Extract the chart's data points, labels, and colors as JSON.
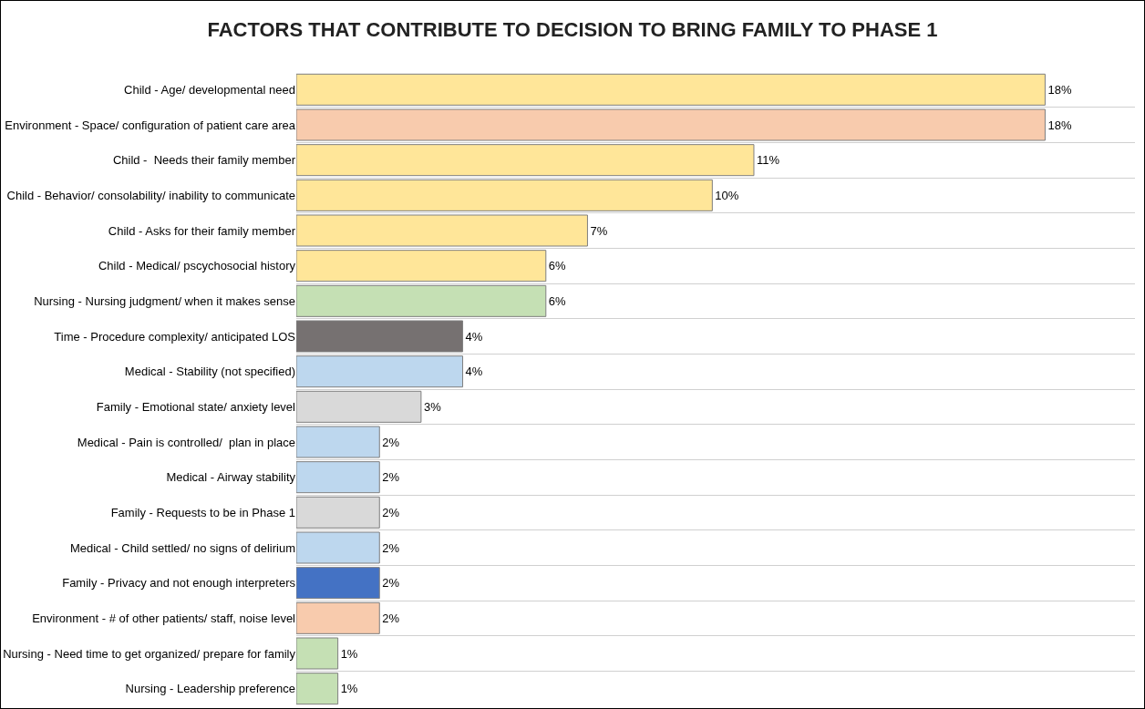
{
  "chart_data": {
    "type": "bar",
    "orientation": "horizontal",
    "title": "FACTORS THAT CONTRIBUTE TO DECISION TO BRING FAMILY TO PHASE 1",
    "categories": [
      "Child - Age/ developmental need",
      "Environment - Space/ configuration of patient care area",
      "Child -  Needs their family member",
      "Child - Behavior/ consolability/ inability to communicate",
      "Child - Asks for their family member",
      "Child - Medical/ pscychosocial history",
      "Nursing - Nursing judgment/ when it makes sense",
      "Time - Procedure complexity/ anticipated LOS",
      "Medical - Stability (not specified)",
      "Family - Emotional state/ anxiety level",
      "Medical - Pain is controlled/  plan in place",
      "Medical - Airway stability",
      "Family - Requests to be in Phase 1",
      "Medical - Child settled/ no signs of delirium",
      "Family - Privacy and not enough interpreters",
      "Environment - # of other patients/ staff, noise level",
      "Nursing - Need time to get organized/ prepare for family",
      "Nursing - Leadership preference"
    ],
    "values": [
      18,
      18,
      11,
      10,
      7,
      6,
      6,
      4,
      4,
      3,
      2,
      2,
      2,
      2,
      2,
      2,
      1,
      1
    ],
    "value_labels": [
      "18%",
      "18%",
      "11%",
      "10%",
      "7%",
      "6%",
      "6%",
      "4%",
      "4%",
      "3%",
      "2%",
      "2%",
      "2%",
      "2%",
      "2%",
      "2%",
      "1%",
      "1%"
    ],
    "colors": [
      "#ffe699",
      "#f8cbad",
      "#ffe699",
      "#ffe699",
      "#ffe699",
      "#ffe699",
      "#c5e0b4",
      "#767171",
      "#bdd7ee",
      "#d9d9d9",
      "#bdd7ee",
      "#bdd7ee",
      "#d9d9d9",
      "#bdd7ee",
      "#4472c4",
      "#f8cbad",
      "#c5e0b4",
      "#c5e0b4"
    ],
    "grid": "y",
    "tick_labels": "y"
  }
}
